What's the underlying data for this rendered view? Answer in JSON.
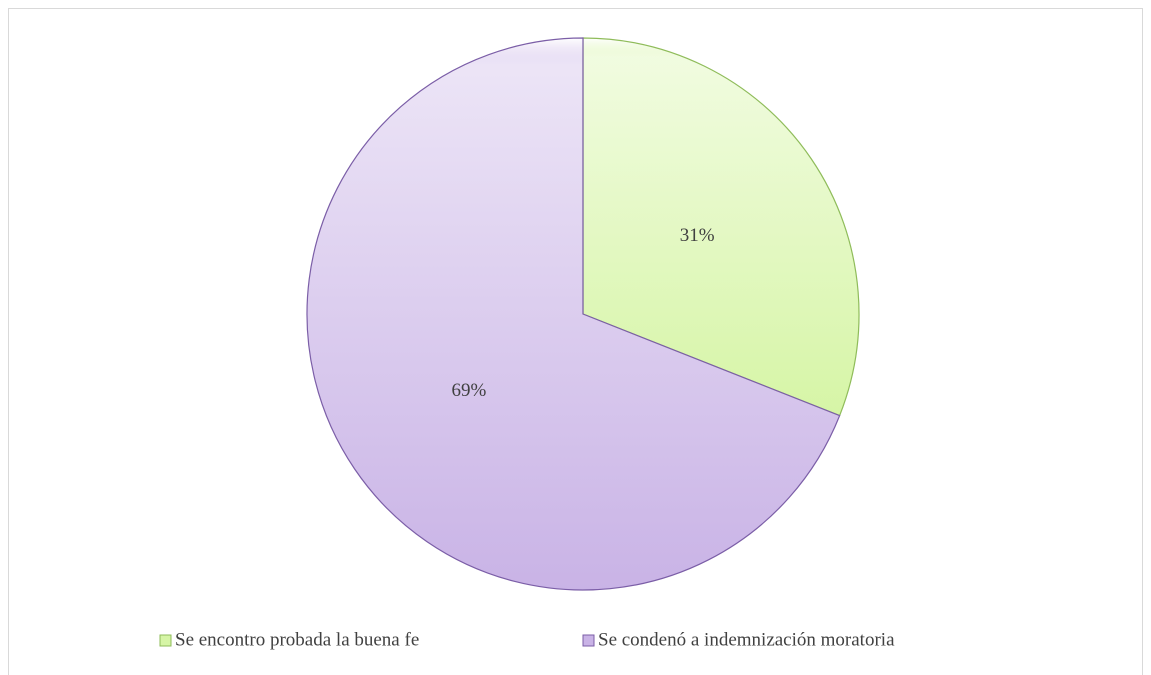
{
  "chart_data": {
    "type": "pie",
    "categories": [
      "Se encontro probada la buena fe",
      "Se condenó a indemnización moratoria"
    ],
    "values": [
      31,
      69
    ],
    "value_labels": [
      "31%",
      "69%"
    ],
    "colors": [
      "#d6f5a6",
      "#c9b3e6"
    ],
    "edge_colors": [
      "#8fbc5a",
      "#7b5ea7"
    ],
    "legend": "bottom"
  }
}
